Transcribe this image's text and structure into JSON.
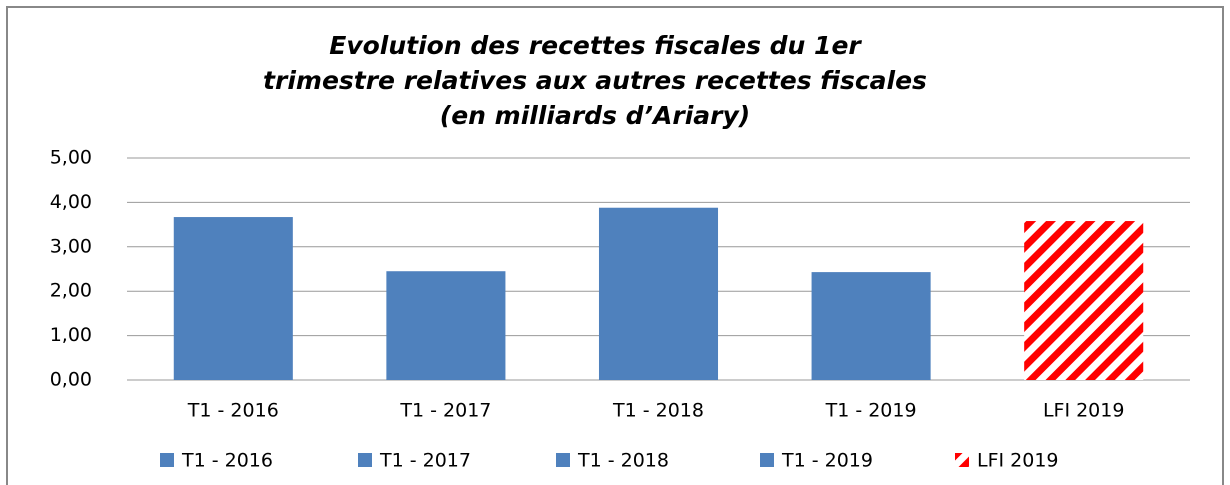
{
  "chart_data": {
    "type": "bar",
    "title": "Evolution des recettes fiscales du 1er\ntrimestre relatives aux autres recettes fiscales\n(en milliards d’Ariary)",
    "categories": [
      "T1 - 2016",
      "T1 - 2017",
      "T1 - 2018",
      "T1 - 2019",
      "LFI 2019"
    ],
    "values": [
      3.67,
      2.45,
      3.88,
      2.43,
      3.58
    ],
    "colors": [
      "#4f81bd",
      "#4f81bd",
      "#4f81bd",
      "#4f81bd",
      "#ff0000"
    ],
    "hatch": [
      false,
      false,
      false,
      false,
      true
    ],
    "ylim": [
      0,
      5
    ],
    "yticks": [
      {
        "value": 0,
        "label": "0,00"
      },
      {
        "value": 1,
        "label": "1,00"
      },
      {
        "value": 2,
        "label": "2,00"
      },
      {
        "value": 3,
        "label": "3,00"
      },
      {
        "value": 4,
        "label": "4,00"
      },
      {
        "value": 5,
        "label": "5,00"
      }
    ],
    "grid": true,
    "legend": "bottom"
  }
}
